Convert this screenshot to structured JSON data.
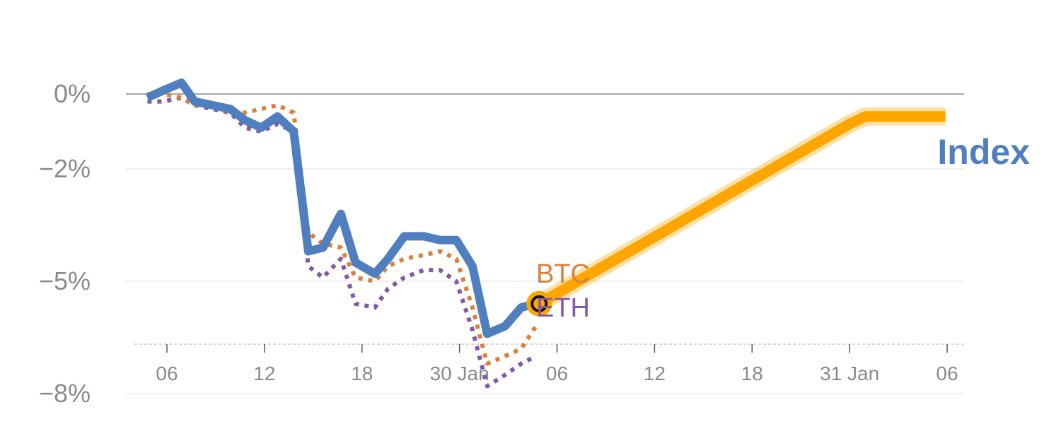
{
  "chart_data": {
    "type": "line",
    "title": "",
    "xlabel": "",
    "ylabel": "",
    "ylim": [
      -8.8,
      0.5
    ],
    "y_ticks": [
      {
        "value": 0,
        "label": "0%"
      },
      {
        "value": -2,
        "label": "−2%"
      },
      {
        "value": -5,
        "label": "−5%"
      },
      {
        "value": -8,
        "label": "−8%"
      }
    ],
    "x_ticks": [
      {
        "position": 6,
        "label": "06"
      },
      {
        "position": 12,
        "label": "12"
      },
      {
        "position": 18,
        "label": "18"
      },
      {
        "position": 24,
        "label": "30 Jan"
      },
      {
        "position": 30,
        "label": "06"
      },
      {
        "position": 36,
        "label": "12"
      },
      {
        "position": 42,
        "label": "18"
      },
      {
        "position": 48,
        "label": "31 Jan"
      },
      {
        "position": 54,
        "label": "06"
      }
    ],
    "grid": true,
    "series": [
      {
        "name": "Index",
        "style": "solid",
        "color": "#4f7fbf",
        "x": [
          4.8,
          5.8,
          6.9,
          7.7,
          8.8,
          9.9,
          10.8,
          11.8,
          12.8,
          13.8,
          14.7,
          15.6,
          16.7,
          17.6,
          18.8,
          19.6,
          20.6,
          21.8,
          22.8,
          23.8,
          24.8,
          25.7,
          26.8,
          27.8,
          28.7
        ],
        "values": [
          -0.1,
          0.1,
          0.3,
          -0.2,
          -0.3,
          -0.4,
          -0.7,
          -0.9,
          -0.6,
          -1.0,
          -4.2,
          -4.1,
          -3.2,
          -4.5,
          -4.8,
          -4.4,
          -3.8,
          -3.8,
          -3.9,
          -3.9,
          -4.6,
          -6.4,
          -6.2,
          -5.7,
          -5.6
        ]
      },
      {
        "name": "BTC",
        "style": "dotted",
        "color": "#d9813a",
        "x": [
          4.8,
          5.8,
          6.9,
          7.7,
          8.8,
          9.9,
          10.8,
          11.8,
          12.8,
          13.8,
          14.7,
          15.6,
          16.7,
          17.6,
          18.8,
          19.6,
          20.6,
          21.8,
          22.8,
          23.8,
          24.8,
          25.7,
          26.8,
          27.8,
          28.7
        ],
        "values": [
          0.0,
          0.0,
          -0.1,
          -0.3,
          -0.3,
          -0.5,
          -0.5,
          -0.4,
          -0.3,
          -0.5,
          -3.7,
          -4.0,
          -4.1,
          -4.9,
          -5.0,
          -4.6,
          -4.4,
          -4.3,
          -4.2,
          -4.4,
          -5.7,
          -7.2,
          -7.0,
          -6.8,
          -6.2
        ]
      },
      {
        "name": "ETH",
        "style": "dotted",
        "color": "#8159a5",
        "x": [
          4.8,
          5.8,
          6.9,
          7.7,
          8.8,
          9.9,
          10.8,
          11.8,
          12.8,
          13.8,
          14.7,
          15.6,
          16.7,
          17.6,
          18.8,
          19.6,
          20.6,
          21.8,
          22.8,
          23.8,
          24.8,
          25.7,
          26.8,
          27.8,
          28.7
        ],
        "values": [
          -0.2,
          -0.2,
          -0.1,
          -0.3,
          -0.4,
          -0.5,
          -0.9,
          -1.0,
          -0.8,
          -1.0,
          -4.6,
          -4.9,
          -4.4,
          -5.6,
          -5.7,
          -5.2,
          -4.9,
          -4.7,
          -4.7,
          -5.0,
          -6.3,
          -7.8,
          -7.5,
          -7.2,
          -7.0
        ]
      },
      {
        "name": "",
        "style": "highlight",
        "color": "#ffa500",
        "x": [
          28.9,
          48.0,
          49.0,
          53.9
        ],
        "values": [
          -5.6,
          -0.8,
          -0.6,
          -0.6
        ]
      }
    ],
    "marker": {
      "x": 28.9,
      "value": -5.6,
      "color": "#ffa500"
    },
    "end_labels": [
      {
        "text": "Index",
        "color": "#4f7fbf"
      },
      {
        "text": "BTC",
        "color": "#d9813a"
      },
      {
        "text": "ETH",
        "color": "#8159a5"
      }
    ]
  }
}
